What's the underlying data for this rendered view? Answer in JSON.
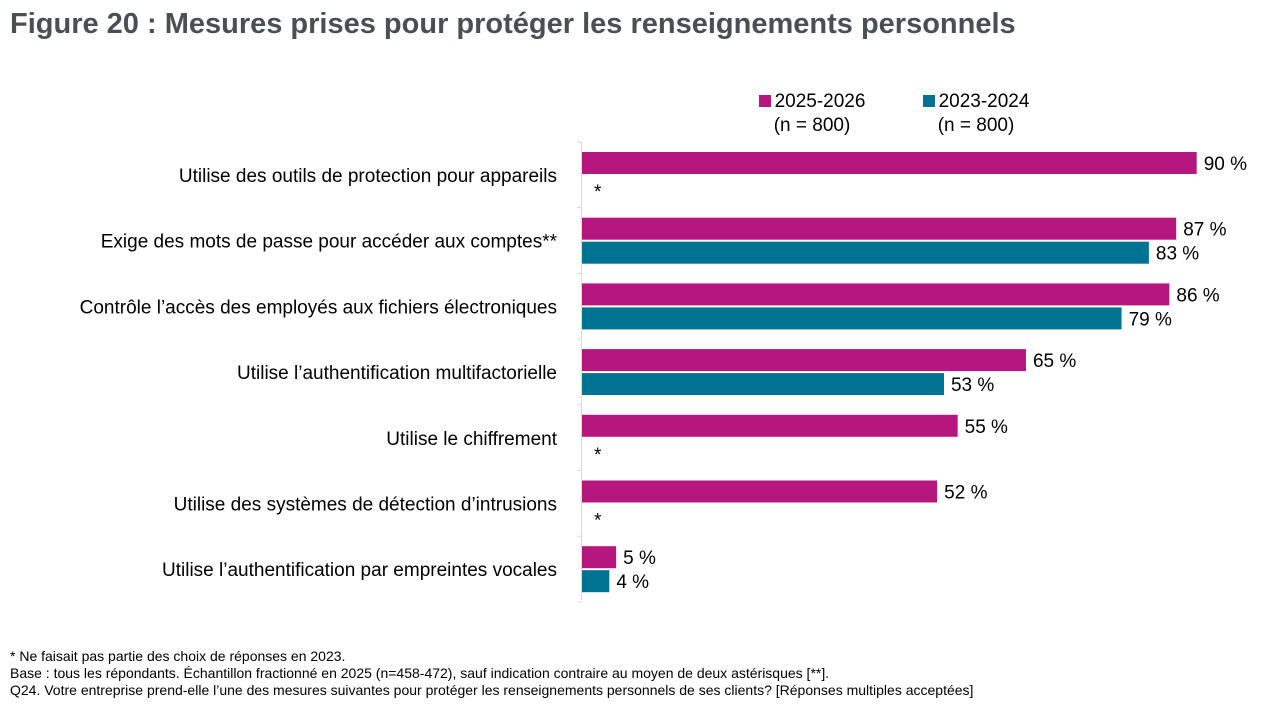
{
  "title": "Figure 20 : Mesures prises pour protéger les renseignements personnels",
  "legend": [
    {
      "label": "2025-2026",
      "sub": "(n = 800)",
      "color": "#b5177f"
    },
    {
      "label": "2023-2024",
      "sub": "(n = 800)",
      "color": "#007392"
    }
  ],
  "footnotes": [
    "* Ne faisait pas partie des choix de réponses en 2023.",
    "Base : tous les répondants. Échantillon fractionné en 2025 (n=458-472), sauf indication contraire au moyen de deux astérisques [**].",
    "Q24. Votre entreprise prend-elle l’une des mesures suivantes pour protéger les renseignements personnels de ses clients? [Réponses multiples acceptées]"
  ],
  "chart_data": {
    "type": "bar",
    "orientation": "horizontal",
    "categories": [
      "Utilise des outils de protection pour appareils",
      "Exige des mots de passe pour accéder aux comptes**",
      "Contrôle l’accès des employés aux fichiers électroniques",
      "Utilise l’authentification multifactorielle",
      "Utilise le chiffrement",
      "Utilise des systèmes de détection d’intrusions",
      "Utilise l’authentification par empreintes vocales"
    ],
    "series": [
      {
        "name": "2025-2026",
        "values": [
          90,
          87,
          86,
          65,
          55,
          52,
          5
        ],
        "labels": [
          "90 %",
          "87 %",
          "86 %",
          "65 %",
          "55 %",
          "52 %",
          "5 %"
        ],
        "color": "#b5177f"
      },
      {
        "name": "2023-2024",
        "values": [
          null,
          83,
          79,
          53,
          null,
          null,
          4
        ],
        "labels": [
          "*",
          "83 %",
          "79 %",
          "53 %",
          "*",
          "*",
          "4 %"
        ],
        "color": "#007392"
      }
    ],
    "xlim": [
      0,
      100
    ],
    "grid": false,
    "legend_position": "top-right"
  }
}
